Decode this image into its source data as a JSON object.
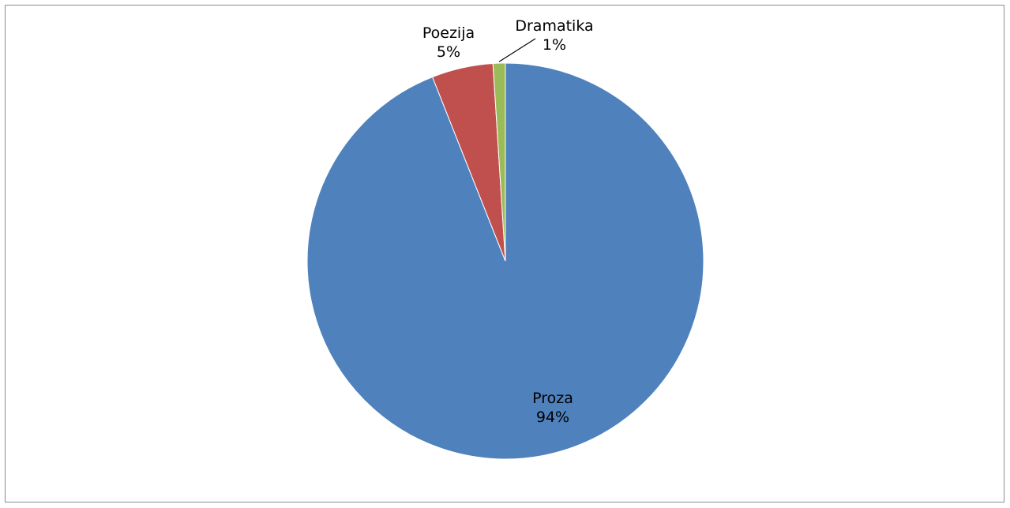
{
  "chart_data": {
    "type": "pie",
    "title": "",
    "slices": [
      {
        "name": "Proza",
        "value": 94,
        "label": "94%",
        "color": "#4F81BD"
      },
      {
        "name": "Poezija",
        "value": 5,
        "label": "5%",
        "color": "#C0504D"
      },
      {
        "name": "Dramatika",
        "value": 1,
        "label": "1%",
        "color": "#9BBB59"
      }
    ],
    "legend": "none",
    "start_angle": "12 o'clock",
    "direction": "clockwise"
  }
}
